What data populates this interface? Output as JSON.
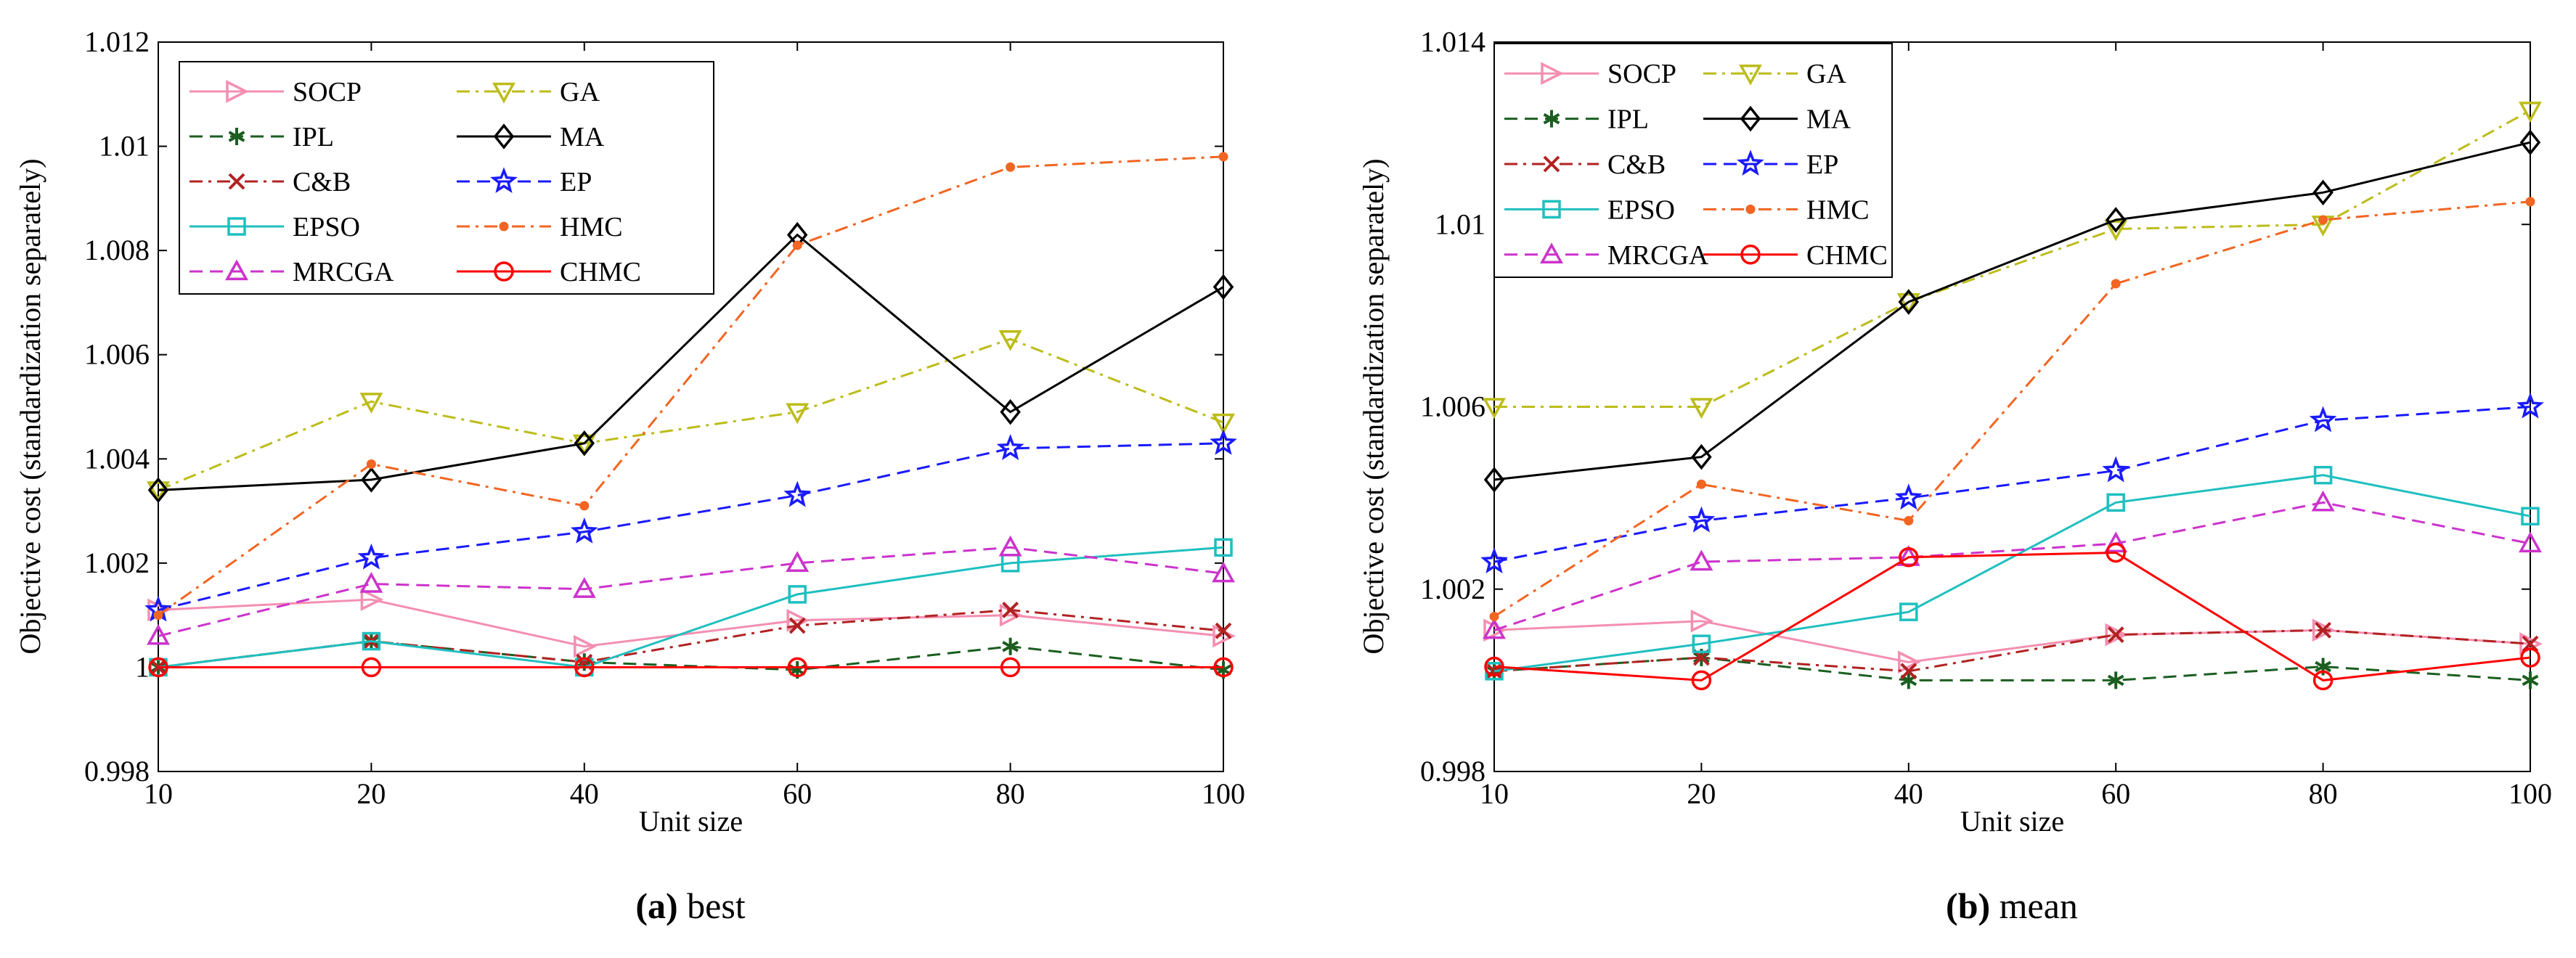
{
  "chart_data": [
    {
      "type": "line",
      "panel": "a",
      "caption_letter": "(a)",
      "caption_word": "best",
      "xlabel": "Unit size",
      "ylabel": "Objective cost (standardization separately)",
      "categories": [
        "10",
        "20",
        "40",
        "60",
        "80",
        "100"
      ],
      "ylim": [
        0.998,
        1.012
      ],
      "yticks": [
        0.998,
        1,
        1.002,
        1.004,
        1.006,
        1.008,
        1.01,
        1.012
      ],
      "ytick_labels": [
        "0.998",
        "1",
        "1.002",
        "1.004",
        "1.006",
        "1.008",
        "1.01",
        "1.012"
      ],
      "legend_position": "top-left",
      "series": [
        {
          "name": "SOCP",
          "color": "#f48fb1",
          "marker": "tri-right",
          "dash": "solid",
          "values": [
            1.0011,
            1.0013,
            1.0004,
            1.0009,
            1.001,
            1.0006
          ]
        },
        {
          "name": "IPL",
          "color": "#1b5e20",
          "marker": "star6",
          "dash": "dash",
          "values": [
            1.0,
            1.0005,
            1.0001,
            0.99995,
            1.0004,
            0.99995
          ]
        },
        {
          "name": "C&B",
          "color": "#b22222",
          "marker": "x",
          "dash": "dashdot",
          "values": [
            1.0,
            1.0005,
            1.0001,
            1.0008,
            1.0011,
            1.0007
          ]
        },
        {
          "name": "EPSO",
          "color": "#1fbfbf",
          "marker": "square",
          "dash": "solid",
          "values": [
            1.0,
            1.0005,
            1.0,
            1.0014,
            1.002,
            1.0023
          ]
        },
        {
          "name": "MRCGA",
          "color": "#cc33cc",
          "marker": "tri-up",
          "dash": "dash",
          "values": [
            1.0006,
            1.0016,
            1.0015,
            1.002,
            1.0023,
            1.0018
          ]
        },
        {
          "name": "GA",
          "color": "#bcbc1a",
          "marker": "tri-down",
          "dash": "dashdot",
          "values": [
            1.0034,
            1.0051,
            1.0043,
            1.0049,
            1.0063,
            1.0047
          ]
        },
        {
          "name": "MA",
          "color": "#000000",
          "marker": "diamond",
          "dash": "solid",
          "values": [
            1.0034,
            1.0036,
            1.0043,
            1.0083,
            1.0049,
            1.0073
          ]
        },
        {
          "name": "EP",
          "color": "#1a1aff",
          "marker": "star5",
          "dash": "dash",
          "values": [
            1.0011,
            1.0021,
            1.0026,
            1.0033,
            1.0042,
            1.0043
          ]
        },
        {
          "name": "HMC",
          "color": "#f26522",
          "marker": "dot",
          "dash": "dashdot",
          "values": [
            1.001,
            1.0039,
            1.0031,
            1.0081,
            1.0096,
            1.0098
          ]
        },
        {
          "name": "CHMC",
          "color": "#ff0000",
          "marker": "circle",
          "dash": "solid",
          "values": [
            1.0,
            1.0,
            1.0,
            1.0,
            1.0,
            1.0
          ]
        }
      ]
    },
    {
      "type": "line",
      "panel": "b",
      "caption_letter": "(b)",
      "caption_word": "mean",
      "xlabel": "Unit size",
      "ylabel": "Objective cost (standardization separately)",
      "categories": [
        "10",
        "20",
        "40",
        "60",
        "80",
        "100"
      ],
      "ylim": [
        0.998,
        1.014
      ],
      "yticks": [
        0.998,
        1.002,
        1.006,
        1.01,
        1.014
      ],
      "ytick_labels": [
        "0.998",
        "1.002",
        "1.006",
        "1.01",
        "1.014"
      ],
      "legend_position": "top-left",
      "series": [
        {
          "name": "SOCP",
          "color": "#f48fb1",
          "marker": "tri-right",
          "dash": "solid",
          "values": [
            1.0011,
            1.0013,
            1.0004,
            1.001,
            1.0011,
            1.0008
          ]
        },
        {
          "name": "IPL",
          "color": "#1b5e20",
          "marker": "star6",
          "dash": "dash",
          "values": [
            1.0002,
            1.0005,
            1.0,
            1.0,
            1.0003,
            1.0
          ]
        },
        {
          "name": "C&B",
          "color": "#b22222",
          "marker": "x",
          "dash": "dashdot",
          "values": [
            1.0002,
            1.0005,
            1.0002,
            1.001,
            1.0011,
            1.0008
          ]
        },
        {
          "name": "EPSO",
          "color": "#1fbfbf",
          "marker": "square",
          "dash": "solid",
          "values": [
            1.0002,
            1.0008,
            1.0015,
            1.0039,
            1.0045,
            1.0036
          ]
        },
        {
          "name": "MRCGA",
          "color": "#cc33cc",
          "marker": "tri-up",
          "dash": "dash",
          "values": [
            1.0011,
            1.0026,
            1.0027,
            1.003,
            1.0039,
            1.003
          ]
        },
        {
          "name": "GA",
          "color": "#bcbc1a",
          "marker": "tri-down",
          "dash": "dashdot",
          "values": [
            1.006,
            1.006,
            1.0083,
            1.0099,
            1.01,
            1.0125
          ]
        },
        {
          "name": "MA",
          "color": "#000000",
          "marker": "diamond",
          "dash": "solid",
          "values": [
            1.0044,
            1.0049,
            1.0083,
            1.0101,
            1.0107,
            1.0118
          ]
        },
        {
          "name": "EP",
          "color": "#1a1aff",
          "marker": "star5",
          "dash": "dash",
          "values": [
            1.0026,
            1.0035,
            1.004,
            1.0046,
            1.0057,
            1.006
          ]
        },
        {
          "name": "HMC",
          "color": "#f26522",
          "marker": "dot",
          "dash": "dashdot",
          "values": [
            1.0014,
            1.0043,
            1.0035,
            1.0087,
            1.0101,
            1.0105
          ]
        },
        {
          "name": "CHMC",
          "color": "#ff0000",
          "marker": "circle",
          "dash": "solid",
          "values": [
            1.0003,
            1.0,
            1.0027,
            1.0028,
            1.0,
            1.0005
          ]
        }
      ]
    }
  ]
}
